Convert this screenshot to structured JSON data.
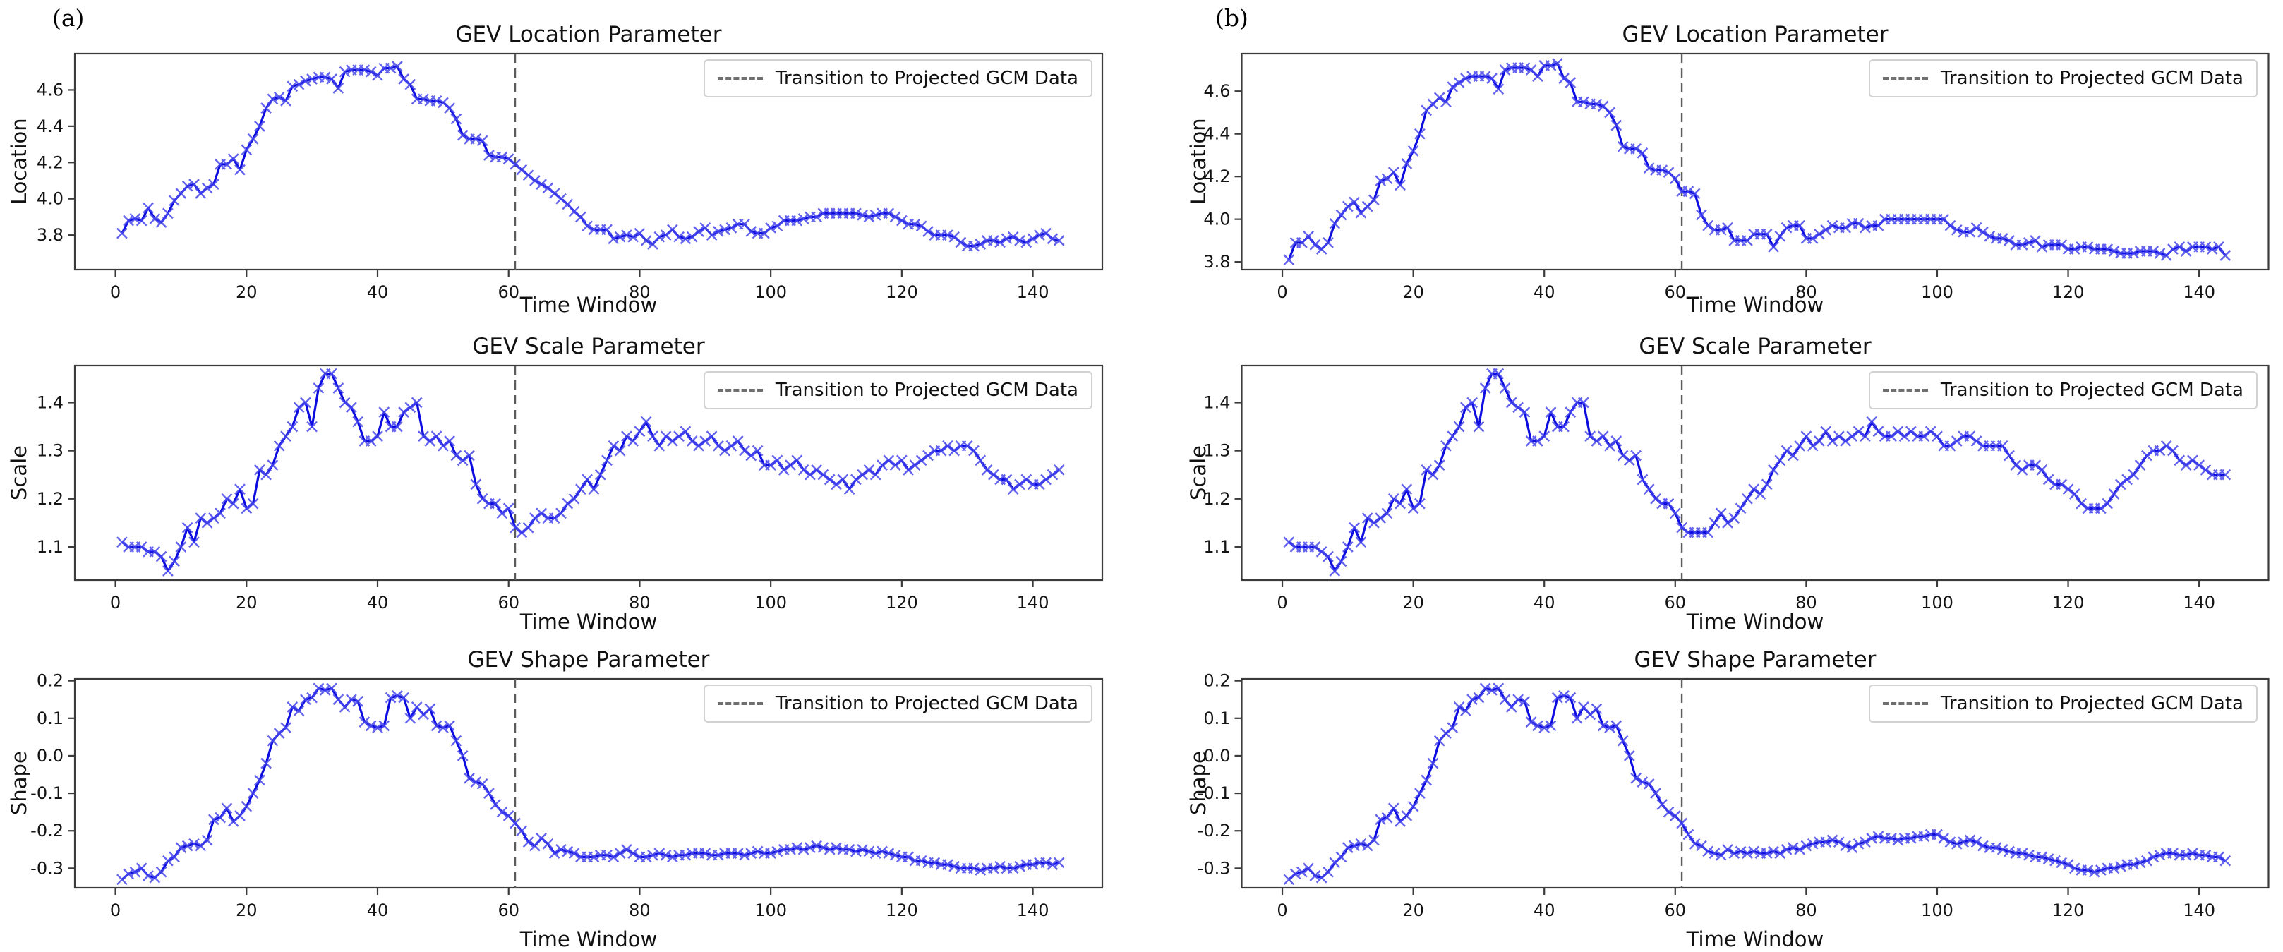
{
  "figure": {
    "panel_a_label": "(a)",
    "panel_b_label": "(b)",
    "background": "#ffffff"
  },
  "colors": {
    "line": "#0d0de0",
    "marker": "#4646ec",
    "vline": "#5c5c5c",
    "spine": "#3b3b3b",
    "text": "#141414",
    "legend_border": "#d2d2d2"
  },
  "chart_data": [
    {
      "type": "line",
      "panel": "a",
      "row": 0,
      "title": "GEV Location Parameter",
      "xlabel": "Time Window",
      "ylabel": "Location",
      "legend": "Transition to Projected GCM Data",
      "legend_position": "upper right",
      "grid": false,
      "marker": "x",
      "line_color": "blue",
      "vline_x": 61,
      "vline_style": "dashed gray",
      "x_start": 1,
      "xticks": [
        0,
        20,
        40,
        60,
        80,
        100,
        120,
        140
      ],
      "yticks": [
        3.8,
        4.0,
        4.2,
        4.4,
        4.6
      ],
      "xlim": [
        -6.2,
        150.6
      ],
      "ylim": [
        3.61,
        4.8
      ],
      "values": [
        3.81,
        3.88,
        3.89,
        3.88,
        3.95,
        3.89,
        3.87,
        3.92,
        3.99,
        4.03,
        4.07,
        4.08,
        4.03,
        4.06,
        4.08,
        4.19,
        4.19,
        4.22,
        4.16,
        4.27,
        4.33,
        4.4,
        4.5,
        4.55,
        4.56,
        4.54,
        4.62,
        4.63,
        4.65,
        4.66,
        4.67,
        4.67,
        4.66,
        4.61,
        4.7,
        4.71,
        4.71,
        4.71,
        4.7,
        4.68,
        4.72,
        4.72,
        4.73,
        4.66,
        4.63,
        4.55,
        4.55,
        4.54,
        4.54,
        4.53,
        4.5,
        4.44,
        4.35,
        4.33,
        4.33,
        4.32,
        4.24,
        4.23,
        4.23,
        4.22,
        4.19,
        4.16,
        4.13,
        4.1,
        4.08,
        4.06,
        4.03,
        4.0,
        3.97,
        3.93,
        3.9,
        3.85,
        3.83,
        3.83,
        3.83,
        3.78,
        3.79,
        3.8,
        3.79,
        3.81,
        3.77,
        3.75,
        3.79,
        3.8,
        3.83,
        3.79,
        3.78,
        3.79,
        3.82,
        3.84,
        3.8,
        3.82,
        3.83,
        3.84,
        3.86,
        3.86,
        3.82,
        3.81,
        3.81,
        3.84,
        3.85,
        3.88,
        3.88,
        3.88,
        3.89,
        3.9,
        3.9,
        3.92,
        3.92,
        3.92,
        3.92,
        3.92,
        3.92,
        3.91,
        3.9,
        3.91,
        3.92,
        3.92,
        3.9,
        3.88,
        3.86,
        3.86,
        3.85,
        3.82,
        3.8,
        3.8,
        3.8,
        3.79,
        3.76,
        3.74,
        3.74,
        3.75,
        3.77,
        3.77,
        3.76,
        3.78,
        3.79,
        3.77,
        3.76,
        3.78,
        3.8,
        3.81,
        3.78,
        3.77
      ]
    },
    {
      "type": "line",
      "panel": "a",
      "row": 1,
      "title": "GEV Scale Parameter",
      "xlabel": "Time Window",
      "ylabel": "Scale",
      "legend": "Transition to Projected GCM Data",
      "legend_position": "upper right",
      "grid": false,
      "marker": "x",
      "line_color": "blue",
      "vline_x": 61,
      "vline_style": "dashed gray",
      "x_start": 1,
      "xticks": [
        0,
        20,
        40,
        60,
        80,
        100,
        120,
        140
      ],
      "yticks": [
        1.1,
        1.2,
        1.3,
        1.4
      ],
      "xlim": [
        -6.2,
        150.6
      ],
      "ylim": [
        1.031,
        1.477
      ],
      "values": [
        1.11,
        1.1,
        1.1,
        1.1,
        1.09,
        1.09,
        1.08,
        1.05,
        1.07,
        1.1,
        1.14,
        1.11,
        1.16,
        1.15,
        1.16,
        1.17,
        1.2,
        1.19,
        1.22,
        1.18,
        1.19,
        1.26,
        1.25,
        1.27,
        1.31,
        1.33,
        1.35,
        1.39,
        1.4,
        1.35,
        1.43,
        1.46,
        1.46,
        1.43,
        1.4,
        1.39,
        1.36,
        1.32,
        1.32,
        1.33,
        1.38,
        1.35,
        1.35,
        1.38,
        1.39,
        1.4,
        1.33,
        1.32,
        1.33,
        1.31,
        1.32,
        1.29,
        1.28,
        1.29,
        1.23,
        1.2,
        1.19,
        1.19,
        1.17,
        1.18,
        1.14,
        1.13,
        1.14,
        1.16,
        1.17,
        1.16,
        1.16,
        1.17,
        1.19,
        1.2,
        1.22,
        1.24,
        1.22,
        1.25,
        1.28,
        1.31,
        1.3,
        1.33,
        1.32,
        1.34,
        1.36,
        1.33,
        1.31,
        1.33,
        1.32,
        1.33,
        1.34,
        1.32,
        1.31,
        1.32,
        1.33,
        1.31,
        1.3,
        1.31,
        1.32,
        1.3,
        1.29,
        1.3,
        1.27,
        1.27,
        1.28,
        1.26,
        1.27,
        1.28,
        1.26,
        1.25,
        1.26,
        1.25,
        1.24,
        1.23,
        1.24,
        1.22,
        1.24,
        1.25,
        1.26,
        1.25,
        1.27,
        1.28,
        1.27,
        1.28,
        1.26,
        1.27,
        1.28,
        1.29,
        1.3,
        1.3,
        1.31,
        1.3,
        1.31,
        1.31,
        1.3,
        1.28,
        1.26,
        1.25,
        1.24,
        1.24,
        1.22,
        1.23,
        1.24,
        1.23,
        1.23,
        1.24,
        1.25,
        1.26
      ]
    },
    {
      "type": "line",
      "panel": "a",
      "row": 2,
      "title": "GEV Shape Parameter",
      "xlabel": "Time Window",
      "ylabel": "Shape",
      "legend": "Transition to Projected GCM Data",
      "legend_position": "upper right",
      "grid": false,
      "marker": "x",
      "line_color": "blue",
      "vline_x": 61,
      "vline_style": "dashed gray",
      "x_start": 1,
      "xticks": [
        0,
        20,
        40,
        60,
        80,
        100,
        120,
        140
      ],
      "yticks": [
        -0.3,
        -0.2,
        -0.1,
        0.0,
        0.1,
        0.2
      ],
      "xlim": [
        -6.2,
        150.6
      ],
      "ylim": [
        -0.352,
        0.205
      ],
      "values": [
        -0.33,
        -0.315,
        -0.31,
        -0.3,
        -0.32,
        -0.325,
        -0.31,
        -0.28,
        -0.27,
        -0.245,
        -0.24,
        -0.235,
        -0.24,
        -0.225,
        -0.17,
        -0.165,
        -0.14,
        -0.175,
        -0.16,
        -0.135,
        -0.1,
        -0.065,
        -0.02,
        0.04,
        0.06,
        0.075,
        0.13,
        0.12,
        0.15,
        0.155,
        0.18,
        0.175,
        0.18,
        0.15,
        0.13,
        0.15,
        0.145,
        0.09,
        0.08,
        0.075,
        0.08,
        0.155,
        0.16,
        0.155,
        0.1,
        0.13,
        0.11,
        0.125,
        0.08,
        0.075,
        0.08,
        0.04,
        0.0,
        -0.06,
        -0.07,
        -0.075,
        -0.1,
        -0.13,
        -0.15,
        -0.16,
        -0.18,
        -0.2,
        -0.23,
        -0.24,
        -0.22,
        -0.235,
        -0.26,
        -0.25,
        -0.255,
        -0.26,
        -0.27,
        -0.27,
        -0.27,
        -0.265,
        -0.265,
        -0.27,
        -0.26,
        -0.25,
        -0.26,
        -0.27,
        -0.27,
        -0.265,
        -0.26,
        -0.265,
        -0.27,
        -0.265,
        -0.265,
        -0.26,
        -0.26,
        -0.26,
        -0.265,
        -0.265,
        -0.26,
        -0.26,
        -0.26,
        -0.265,
        -0.26,
        -0.255,
        -0.26,
        -0.26,
        -0.255,
        -0.25,
        -0.25,
        -0.245,
        -0.25,
        -0.245,
        -0.24,
        -0.245,
        -0.25,
        -0.245,
        -0.25,
        -0.25,
        -0.255,
        -0.25,
        -0.255,
        -0.26,
        -0.255,
        -0.26,
        -0.265,
        -0.27,
        -0.27,
        -0.28,
        -0.28,
        -0.285,
        -0.285,
        -0.29,
        -0.29,
        -0.295,
        -0.3,
        -0.3,
        -0.3,
        -0.305,
        -0.3,
        -0.3,
        -0.295,
        -0.3,
        -0.3,
        -0.295,
        -0.29,
        -0.29,
        -0.285,
        -0.285,
        -0.29,
        -0.285
      ]
    },
    {
      "type": "line",
      "panel": "b",
      "row": 0,
      "title": "GEV Location Parameter",
      "xlabel": "Time Window",
      "ylabel": "Location",
      "legend": "Transition to Projected GCM Data",
      "legend_position": "upper right",
      "grid": false,
      "marker": "x",
      "line_color": "blue",
      "vline_x": 61,
      "vline_style": "dashed gray",
      "x_start": 1,
      "xticks": [
        0,
        20,
        40,
        60,
        80,
        100,
        120,
        140
      ],
      "yticks": [
        3.8,
        4.0,
        4.2,
        4.4,
        4.6
      ],
      "xlim": [
        -6.2,
        150.6
      ],
      "ylim": [
        3.764,
        4.776
      ],
      "values": [
        3.81,
        3.89,
        3.89,
        3.92,
        3.88,
        3.86,
        3.89,
        3.98,
        4.02,
        4.06,
        4.08,
        4.03,
        4.06,
        4.09,
        4.18,
        4.19,
        4.22,
        4.16,
        4.26,
        4.32,
        4.4,
        4.51,
        4.54,
        4.57,
        4.55,
        4.62,
        4.64,
        4.66,
        4.67,
        4.67,
        4.67,
        4.66,
        4.61,
        4.7,
        4.71,
        4.71,
        4.71,
        4.7,
        4.67,
        4.72,
        4.72,
        4.73,
        4.66,
        4.64,
        4.55,
        4.55,
        4.54,
        4.54,
        4.53,
        4.5,
        4.44,
        4.34,
        4.33,
        4.33,
        4.31,
        4.24,
        4.23,
        4.23,
        4.22,
        4.19,
        4.13,
        4.13,
        4.12,
        4.02,
        3.97,
        3.95,
        3.95,
        3.96,
        3.9,
        3.9,
        3.9,
        3.93,
        3.93,
        3.93,
        3.87,
        3.92,
        3.96,
        3.97,
        3.97,
        3.91,
        3.91,
        3.93,
        3.95,
        3.97,
        3.96,
        3.96,
        3.98,
        3.98,
        3.96,
        3.97,
        3.97,
        4.0,
        4.0,
        4.0,
        4.0,
        4.0,
        4.0,
        4.0,
        4.0,
        4.0,
        4.0,
        3.97,
        3.95,
        3.94,
        3.94,
        3.96,
        3.94,
        3.92,
        3.91,
        3.91,
        3.9,
        3.88,
        3.88,
        3.89,
        3.9,
        3.87,
        3.88,
        3.88,
        3.88,
        3.86,
        3.86,
        3.87,
        3.87,
        3.86,
        3.86,
        3.86,
        3.85,
        3.84,
        3.84,
        3.84,
        3.85,
        3.85,
        3.85,
        3.84,
        3.83,
        3.86,
        3.87,
        3.85,
        3.87,
        3.87,
        3.87,
        3.86,
        3.87,
        3.83
      ]
    },
    {
      "type": "line",
      "panel": "b",
      "row": 1,
      "title": "GEV Scale Parameter",
      "xlabel": "Time Window",
      "ylabel": "Scale",
      "legend": "Transition to Projected GCM Data",
      "legend_position": "upper right",
      "grid": false,
      "marker": "x",
      "line_color": "blue",
      "vline_x": 61,
      "vline_style": "dashed gray",
      "x_start": 1,
      "xticks": [
        0,
        20,
        40,
        60,
        80,
        100,
        120,
        140
      ],
      "yticks": [
        1.1,
        1.2,
        1.3,
        1.4
      ],
      "xlim": [
        -6.2,
        150.6
      ],
      "ylim": [
        1.031,
        1.477
      ],
      "values": [
        1.11,
        1.1,
        1.1,
        1.1,
        1.1,
        1.09,
        1.08,
        1.05,
        1.07,
        1.1,
        1.14,
        1.11,
        1.16,
        1.15,
        1.16,
        1.17,
        1.2,
        1.19,
        1.22,
        1.18,
        1.19,
        1.26,
        1.25,
        1.27,
        1.31,
        1.33,
        1.35,
        1.39,
        1.4,
        1.35,
        1.43,
        1.46,
        1.46,
        1.43,
        1.4,
        1.39,
        1.38,
        1.32,
        1.32,
        1.33,
        1.38,
        1.35,
        1.35,
        1.38,
        1.4,
        1.4,
        1.33,
        1.32,
        1.33,
        1.31,
        1.32,
        1.29,
        1.28,
        1.29,
        1.24,
        1.22,
        1.2,
        1.19,
        1.19,
        1.17,
        1.14,
        1.13,
        1.13,
        1.13,
        1.13,
        1.15,
        1.17,
        1.15,
        1.16,
        1.18,
        1.2,
        1.22,
        1.21,
        1.23,
        1.26,
        1.28,
        1.3,
        1.29,
        1.31,
        1.33,
        1.31,
        1.32,
        1.34,
        1.32,
        1.33,
        1.32,
        1.33,
        1.34,
        1.33,
        1.36,
        1.34,
        1.33,
        1.33,
        1.34,
        1.33,
        1.34,
        1.33,
        1.33,
        1.34,
        1.33,
        1.31,
        1.31,
        1.32,
        1.33,
        1.33,
        1.32,
        1.31,
        1.31,
        1.31,
        1.31,
        1.29,
        1.27,
        1.26,
        1.27,
        1.27,
        1.26,
        1.24,
        1.23,
        1.23,
        1.22,
        1.21,
        1.19,
        1.18,
        1.18,
        1.18,
        1.19,
        1.21,
        1.23,
        1.24,
        1.25,
        1.27,
        1.29,
        1.3,
        1.3,
        1.31,
        1.3,
        1.28,
        1.27,
        1.28,
        1.27,
        1.26,
        1.25,
        1.25,
        1.25
      ]
    },
    {
      "type": "line",
      "panel": "b",
      "row": 2,
      "title": "GEV Shape Parameter",
      "xlabel": "Time Window",
      "ylabel": "Shape",
      "legend": "Transition to Projected GCM Data",
      "legend_position": "upper right",
      "grid": false,
      "marker": "x",
      "line_color": "blue",
      "vline_x": 61,
      "vline_style": "dashed gray",
      "x_start": 1,
      "xticks": [
        0,
        20,
        40,
        60,
        80,
        100,
        120,
        140
      ],
      "yticks": [
        -0.3,
        -0.2,
        -0.1,
        0.0,
        0.1,
        0.2
      ],
      "xlim": [
        -6.2,
        150.6
      ],
      "ylim": [
        -0.352,
        0.205
      ],
      "values": [
        -0.33,
        -0.315,
        -0.31,
        -0.3,
        -0.32,
        -0.325,
        -0.31,
        -0.285,
        -0.27,
        -0.245,
        -0.24,
        -0.235,
        -0.24,
        -0.225,
        -0.17,
        -0.165,
        -0.14,
        -0.175,
        -0.16,
        -0.135,
        -0.1,
        -0.065,
        -0.02,
        0.04,
        0.06,
        0.075,
        0.13,
        0.12,
        0.15,
        0.155,
        0.18,
        0.175,
        0.18,
        0.15,
        0.13,
        0.15,
        0.145,
        0.09,
        0.08,
        0.075,
        0.08,
        0.155,
        0.16,
        0.155,
        0.1,
        0.13,
        0.11,
        0.125,
        0.08,
        0.075,
        0.08,
        0.04,
        0.0,
        -0.06,
        -0.07,
        -0.075,
        -0.1,
        -0.13,
        -0.15,
        -0.16,
        -0.18,
        -0.21,
        -0.235,
        -0.24,
        -0.255,
        -0.26,
        -0.265,
        -0.25,
        -0.26,
        -0.255,
        -0.26,
        -0.255,
        -0.26,
        -0.26,
        -0.255,
        -0.26,
        -0.25,
        -0.245,
        -0.25,
        -0.24,
        -0.235,
        -0.23,
        -0.23,
        -0.225,
        -0.23,
        -0.24,
        -0.245,
        -0.235,
        -0.23,
        -0.22,
        -0.215,
        -0.22,
        -0.22,
        -0.225,
        -0.22,
        -0.22,
        -0.215,
        -0.215,
        -0.21,
        -0.21,
        -0.22,
        -0.23,
        -0.235,
        -0.23,
        -0.225,
        -0.23,
        -0.24,
        -0.245,
        -0.245,
        -0.25,
        -0.255,
        -0.26,
        -0.26,
        -0.265,
        -0.27,
        -0.27,
        -0.275,
        -0.28,
        -0.285,
        -0.29,
        -0.3,
        -0.305,
        -0.305,
        -0.31,
        -0.305,
        -0.3,
        -0.3,
        -0.295,
        -0.29,
        -0.29,
        -0.285,
        -0.28,
        -0.27,
        -0.265,
        -0.26,
        -0.26,
        -0.265,
        -0.265,
        -0.26,
        -0.265,
        -0.265,
        -0.27,
        -0.27,
        -0.28
      ]
    }
  ]
}
